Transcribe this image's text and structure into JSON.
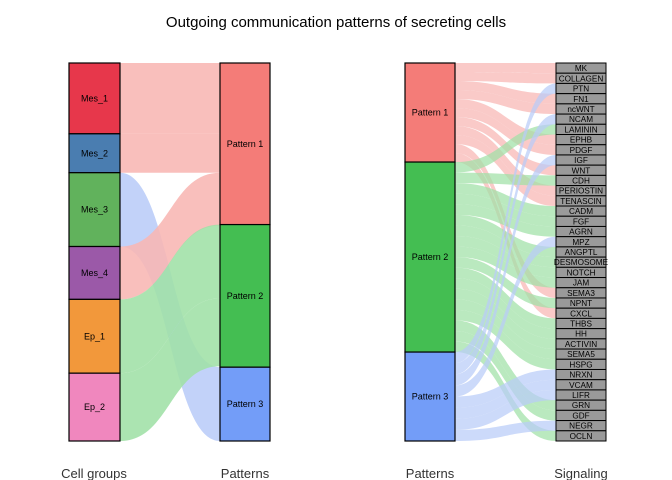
{
  "title": "Outgoing communication patterns of secreting cells",
  "axis_labels": {
    "cell_groups": "Cell groups",
    "patterns_left": "Patterns",
    "patterns_right": "Patterns",
    "signaling": "Signaling"
  },
  "cell_groups": [
    {
      "name": "Mes_1",
      "color": "#E7374B",
      "weight": 71
    },
    {
      "name": "Mes_2",
      "color": "#4A7DB0",
      "weight": 39
    },
    {
      "name": "Mes_3",
      "color": "#61B25C",
      "weight": 74
    },
    {
      "name": "Mes_4",
      "color": "#9B59A8",
      "weight": 53
    },
    {
      "name": "Ep_1",
      "color": "#F2983B",
      "weight": 74
    },
    {
      "name": "Ep_2",
      "color": "#F087BE",
      "weight": 68
    }
  ],
  "patterns": [
    {
      "name": "Pattern 1",
      "color": "#F47C78",
      "weight": 162
    },
    {
      "name": "Pattern 2",
      "color": "#44BE52",
      "weight": 143
    },
    {
      "name": "Pattern 3",
      "color": "#739DF8",
      "weight": 74
    }
  ],
  "link_colors": [
    "#F8B6B3",
    "#9FE0A6",
    "#B9CCF8"
  ],
  "cell_links": [
    {
      "from": "Mes_1",
      "to": "Pattern 1",
      "value": 71
    },
    {
      "from": "Mes_2",
      "to": "Pattern 1",
      "value": 39
    },
    {
      "from": "Mes_3",
      "to": "Pattern 3",
      "value": 74
    },
    {
      "from": "Mes_4",
      "to": "Pattern 1",
      "value": 53
    },
    {
      "from": "Ep_1",
      "to": "Pattern 2",
      "value": 74
    },
    {
      "from": "Ep_2",
      "to": "Pattern 2",
      "value": 68
    }
  ],
  "pattern_weights_right": [
    98,
    188,
    88
  ],
  "signaling": [
    {
      "name": "MK",
      "pattern": "Pattern 1"
    },
    {
      "name": "COLLAGEN",
      "pattern": "Pattern 1"
    },
    {
      "name": "PTN",
      "pattern": "Pattern 3"
    },
    {
      "name": "FN1",
      "pattern": "Pattern 1"
    },
    {
      "name": "ncWNT",
      "pattern": "Pattern 1"
    },
    {
      "name": "NCAM",
      "pattern": "Pattern 3"
    },
    {
      "name": "LAMININ",
      "pattern": "Pattern 2"
    },
    {
      "name": "EPHB",
      "pattern": "Pattern 1"
    },
    {
      "name": "PDGF",
      "pattern": "Pattern 1"
    },
    {
      "name": "IGF",
      "pattern": "Pattern 3"
    },
    {
      "name": "WNT",
      "pattern": "Pattern 1"
    },
    {
      "name": "CDH",
      "pattern": "Pattern 2"
    },
    {
      "name": "PERIOSTIN",
      "pattern": "Pattern 1"
    },
    {
      "name": "TENASCIN",
      "pattern": "Pattern 1"
    },
    {
      "name": "CADM",
      "pattern": "Pattern 2"
    },
    {
      "name": "FGF",
      "pattern": "Pattern 2"
    },
    {
      "name": "AGRN",
      "pattern": "Pattern 2"
    },
    {
      "name": "MPZ",
      "pattern": "Pattern 3"
    },
    {
      "name": "ANGPTL",
      "pattern": "Pattern 2"
    },
    {
      "name": "DESMOSOME",
      "pattern": "Pattern 2"
    },
    {
      "name": "NOTCH",
      "pattern": "Pattern 2"
    },
    {
      "name": "JAM",
      "pattern": "Pattern 2"
    },
    {
      "name": "SEMA3",
      "pattern": "Pattern 1"
    },
    {
      "name": "NPNT",
      "pattern": "Pattern 2"
    },
    {
      "name": "CXCL",
      "pattern": "Pattern 1"
    },
    {
      "name": "THBS",
      "pattern": "Pattern 2"
    },
    {
      "name": "HH",
      "pattern": "Pattern 2"
    },
    {
      "name": "ACTIVIN",
      "pattern": "Pattern 2"
    },
    {
      "name": "SEMA5",
      "pattern": "Pattern 2"
    },
    {
      "name": "HSPG",
      "pattern": "Pattern 2"
    },
    {
      "name": "NRXN",
      "pattern": "Pattern 3"
    },
    {
      "name": "VCAM",
      "pattern": "Pattern 3"
    },
    {
      "name": "LIFR",
      "pattern": "Pattern 3"
    },
    {
      "name": "GRN",
      "pattern": "Pattern 2"
    },
    {
      "name": "GDF",
      "pattern": "Pattern 2"
    },
    {
      "name": "NEGR",
      "pattern": "Pattern 3"
    },
    {
      "name": "OCLN",
      "pattern": "Pattern 2"
    }
  ],
  "signaling_node_color": "#9A9A9A"
}
